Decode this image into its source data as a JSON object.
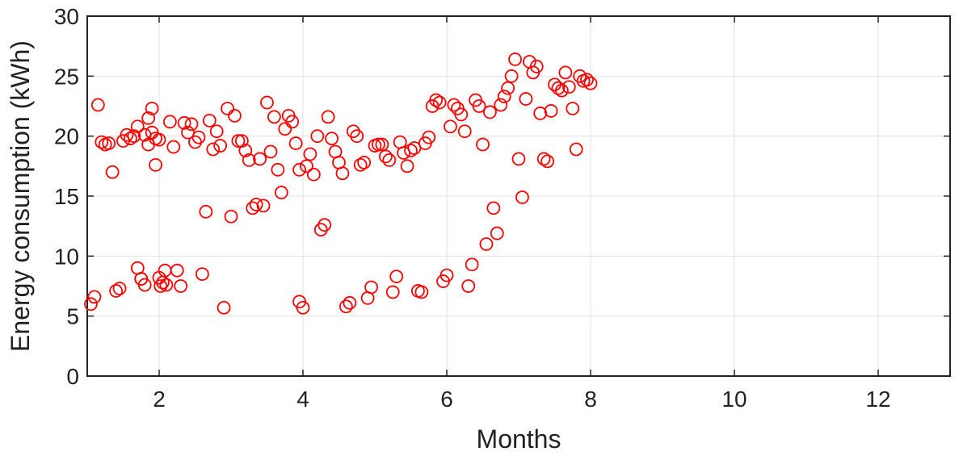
{
  "chart_data": {
    "type": "scatter",
    "title": "",
    "xlabel": "Months",
    "ylabel": "Energy consumption (kWh)",
    "xlim": [
      1,
      13
    ],
    "ylim": [
      0,
      30
    ],
    "x_ticks": [
      2,
      4,
      6,
      8,
      10,
      12
    ],
    "y_ticks": [
      0,
      5,
      10,
      15,
      20,
      25,
      30
    ],
    "x_tick_labels": [
      "2",
      "4",
      "6",
      "8",
      "10",
      "12"
    ],
    "y_tick_labels": [
      "0",
      "5",
      "10",
      "15",
      "20",
      "25",
      "30"
    ],
    "grid": true,
    "legend": "none",
    "marker": "open-circle",
    "colors": {
      "marker": "#ff0000",
      "grid": "#e0e0e0",
      "axis": "#222222"
    },
    "series": [
      {
        "points": [
          [
            1.05,
            6.0
          ],
          [
            1.1,
            6.6
          ],
          [
            1.15,
            22.6
          ],
          [
            1.2,
            19.5
          ],
          [
            1.25,
            19.3
          ],
          [
            1.3,
            19.4
          ],
          [
            1.35,
            17.0
          ],
          [
            1.4,
            7.1
          ],
          [
            1.45,
            7.3
          ],
          [
            1.5,
            19.6
          ],
          [
            1.55,
            20.1
          ],
          [
            1.6,
            19.8
          ],
          [
            1.65,
            20.0
          ],
          [
            1.7,
            20.8
          ],
          [
            1.75,
            8.1
          ],
          [
            1.8,
            7.6
          ],
          [
            1.85,
            19.3
          ],
          [
            1.9,
            22.3
          ],
          [
            1.95,
            17.6
          ],
          [
            2.0,
            19.7
          ],
          [
            1.7,
            9.0
          ],
          [
            1.75,
            8.1
          ],
          [
            1.8,
            20.1
          ],
          [
            1.85,
            21.5
          ],
          [
            1.9,
            20.3
          ],
          [
            1.95,
            19.8
          ],
          [
            2.0,
            8.2
          ],
          [
            2.02,
            7.5
          ],
          [
            2.05,
            7.8
          ],
          [
            2.08,
            8.8
          ],
          [
            2.1,
            7.6
          ],
          [
            2.15,
            21.2
          ],
          [
            2.2,
            19.1
          ],
          [
            2.25,
            8.8
          ],
          [
            2.3,
            7.5
          ],
          [
            2.35,
            21.1
          ],
          [
            2.4,
            20.3
          ],
          [
            2.45,
            21.0
          ],
          [
            2.5,
            19.5
          ],
          [
            2.55,
            19.9
          ],
          [
            2.6,
            8.5
          ],
          [
            2.65,
            13.7
          ],
          [
            2.7,
            21.3
          ],
          [
            2.75,
            18.9
          ],
          [
            2.8,
            20.4
          ],
          [
            2.85,
            19.2
          ],
          [
            2.9,
            5.7
          ],
          [
            2.95,
            22.3
          ],
          [
            3.0,
            13.3
          ],
          [
            3.05,
            21.7
          ],
          [
            3.1,
            19.6
          ],
          [
            3.15,
            19.6
          ],
          [
            3.2,
            18.8
          ],
          [
            3.25,
            18.0
          ],
          [
            3.3,
            14.0
          ],
          [
            3.35,
            14.3
          ],
          [
            3.4,
            18.1
          ],
          [
            3.45,
            14.2
          ],
          [
            3.5,
            22.8
          ],
          [
            3.55,
            18.7
          ],
          [
            3.6,
            21.6
          ],
          [
            3.65,
            17.2
          ],
          [
            3.7,
            15.3
          ],
          [
            3.75,
            20.6
          ],
          [
            3.8,
            21.7
          ],
          [
            3.85,
            21.2
          ],
          [
            3.9,
            19.4
          ],
          [
            3.95,
            17.2
          ],
          [
            3.95,
            6.2
          ],
          [
            4.0,
            5.7
          ],
          [
            4.05,
            17.5
          ],
          [
            4.1,
            18.5
          ],
          [
            4.15,
            16.8
          ],
          [
            4.2,
            20.0
          ],
          [
            4.25,
            12.2
          ],
          [
            4.3,
            12.6
          ],
          [
            4.35,
            21.6
          ],
          [
            4.4,
            19.8
          ],
          [
            4.45,
            18.7
          ],
          [
            4.5,
            17.8
          ],
          [
            4.55,
            16.9
          ],
          [
            4.6,
            5.8
          ],
          [
            4.65,
            6.1
          ],
          [
            4.7,
            20.4
          ],
          [
            4.75,
            20.0
          ],
          [
            4.8,
            17.6
          ],
          [
            4.85,
            17.8
          ],
          [
            4.9,
            6.5
          ],
          [
            4.95,
            7.4
          ],
          [
            5.0,
            19.2
          ],
          [
            5.05,
            19.3
          ],
          [
            5.1,
            19.3
          ],
          [
            5.15,
            18.3
          ],
          [
            5.2,
            18.0
          ],
          [
            5.25,
            7.0
          ],
          [
            5.3,
            8.3
          ],
          [
            5.35,
            19.5
          ],
          [
            5.4,
            18.6
          ],
          [
            5.45,
            17.5
          ],
          [
            5.5,
            18.8
          ],
          [
            5.55,
            19.0
          ],
          [
            5.6,
            7.1
          ],
          [
            5.65,
            7.0
          ],
          [
            5.7,
            19.4
          ],
          [
            5.75,
            19.9
          ],
          [
            5.8,
            22.5
          ],
          [
            5.85,
            23.0
          ],
          [
            5.9,
            22.8
          ],
          [
            5.95,
            7.9
          ],
          [
            6.0,
            8.4
          ],
          [
            6.05,
            20.8
          ],
          [
            6.1,
            22.6
          ],
          [
            6.15,
            22.3
          ],
          [
            6.2,
            21.8
          ],
          [
            6.25,
            20.4
          ],
          [
            6.3,
            7.5
          ],
          [
            6.35,
            9.3
          ],
          [
            6.4,
            23.0
          ],
          [
            6.45,
            22.5
          ],
          [
            6.5,
            19.3
          ],
          [
            6.55,
            11.0
          ],
          [
            6.6,
            22.0
          ],
          [
            6.65,
            14.0
          ],
          [
            6.7,
            11.9
          ],
          [
            6.75,
            22.6
          ],
          [
            6.8,
            23.3
          ],
          [
            6.85,
            24.0
          ],
          [
            6.9,
            25.0
          ],
          [
            6.95,
            26.4
          ],
          [
            7.0,
            18.1
          ],
          [
            7.05,
            14.9
          ],
          [
            7.1,
            23.1
          ],
          [
            7.15,
            26.2
          ],
          [
            7.2,
            25.3
          ],
          [
            7.25,
            25.8
          ],
          [
            7.3,
            21.9
          ],
          [
            7.35,
            18.1
          ],
          [
            7.4,
            17.9
          ],
          [
            7.45,
            22.1
          ],
          [
            7.5,
            24.3
          ],
          [
            7.55,
            24.0
          ],
          [
            7.6,
            23.8
          ],
          [
            7.65,
            25.3
          ],
          [
            7.7,
            24.1
          ],
          [
            7.75,
            22.3
          ],
          [
            7.8,
            18.9
          ],
          [
            7.85,
            25.0
          ],
          [
            7.9,
            24.6
          ],
          [
            7.95,
            24.7
          ],
          [
            8.0,
            24.4
          ]
        ]
      }
    ]
  }
}
